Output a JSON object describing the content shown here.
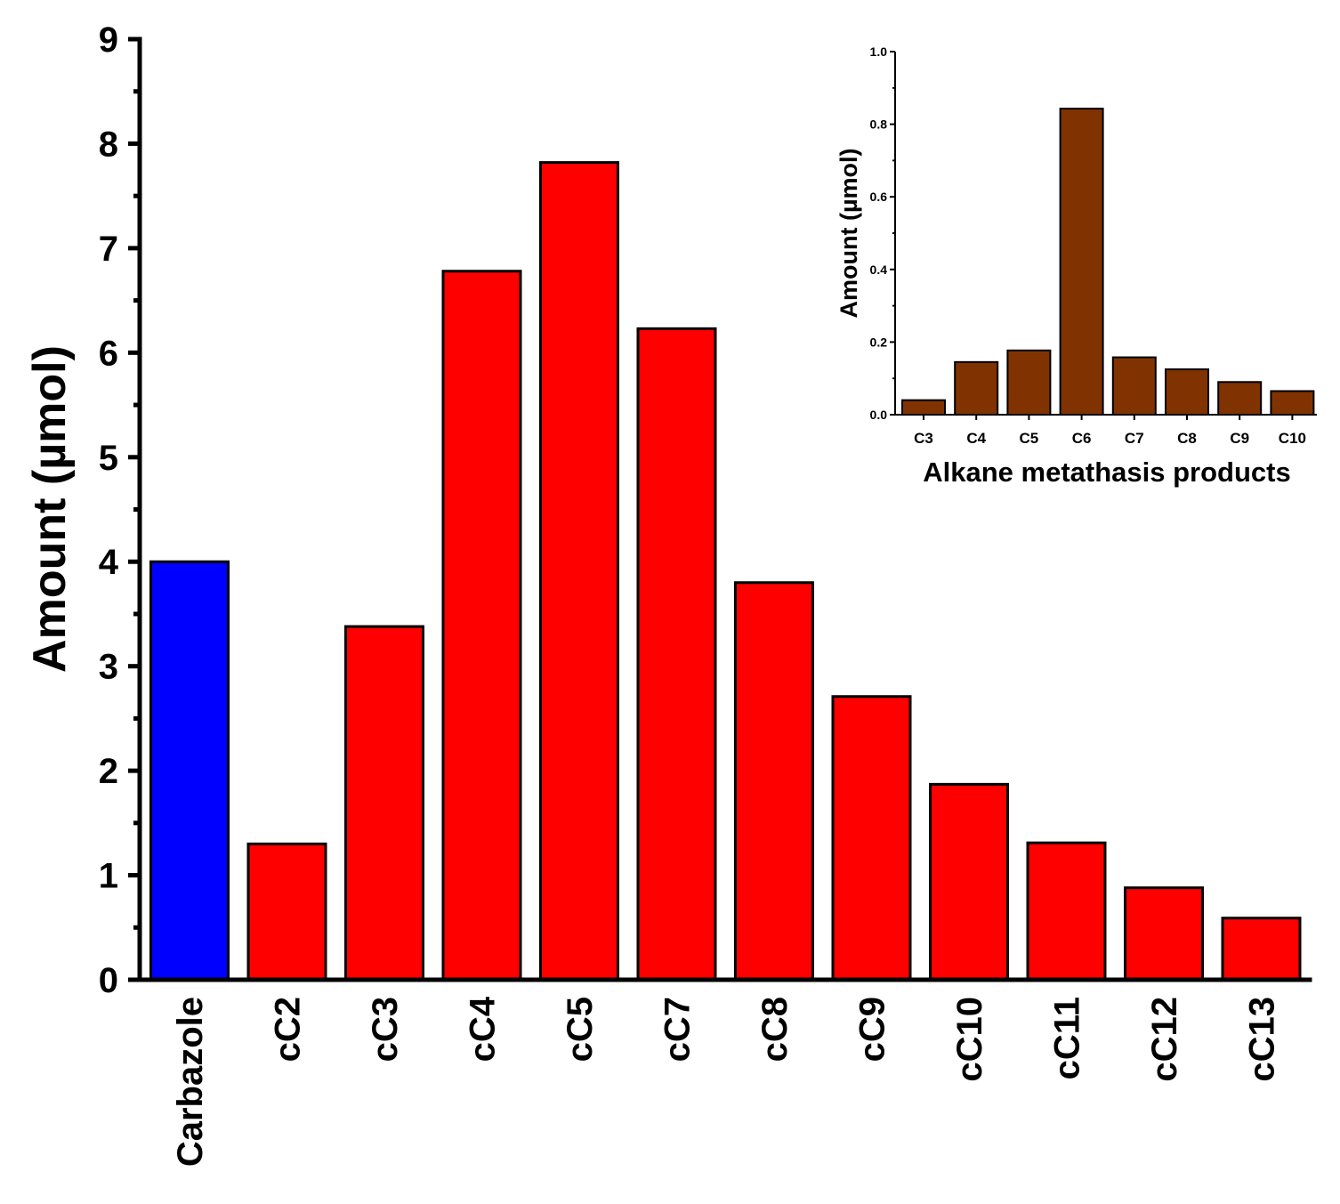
{
  "chart_data": [
    {
      "type": "bar",
      "title": "",
      "xlabel": "",
      "ylabel": "Amount (µmol)",
      "ylim": [
        0,
        9
      ],
      "yticks": [
        "0",
        "1",
        "2",
        "3",
        "4",
        "5",
        "6",
        "7",
        "8",
        "9"
      ],
      "grid": false,
      "categories": [
        "Carbazole",
        "cC2",
        "cC3",
        "cC4",
        "cC5",
        "cC7",
        "cC8",
        "cC9",
        "cC10",
        "cC11",
        "cC12",
        "cC13"
      ],
      "values": [
        4.0,
        1.3,
        3.38,
        6.78,
        7.82,
        6.23,
        3.8,
        2.71,
        1.87,
        1.31,
        0.88,
        0.59
      ],
      "colors": [
        "#0000ff",
        "#ff0000",
        "#ff0000",
        "#ff0000",
        "#ff0000",
        "#ff0000",
        "#ff0000",
        "#ff0000",
        "#ff0000",
        "#ff0000",
        "#ff0000",
        "#ff0000"
      ]
    },
    {
      "type": "bar",
      "title": "",
      "xlabel": "Alkane metathasis products",
      "ylabel": "Amount (µmol)",
      "ylim": [
        0,
        1.0
      ],
      "yticks": [
        "0.0",
        "0.2",
        "0.4",
        "0.6",
        "0.8",
        "1.0"
      ],
      "grid": false,
      "placement": "inset top-right",
      "categories": [
        "C3",
        "C4",
        "C5",
        "C6",
        "C7",
        "C8",
        "C9",
        "C10"
      ],
      "values": [
        0.04,
        0.145,
        0.177,
        0.843,
        0.158,
        0.125,
        0.09,
        0.065
      ],
      "colors": [
        "#803300"
      ]
    }
  ]
}
